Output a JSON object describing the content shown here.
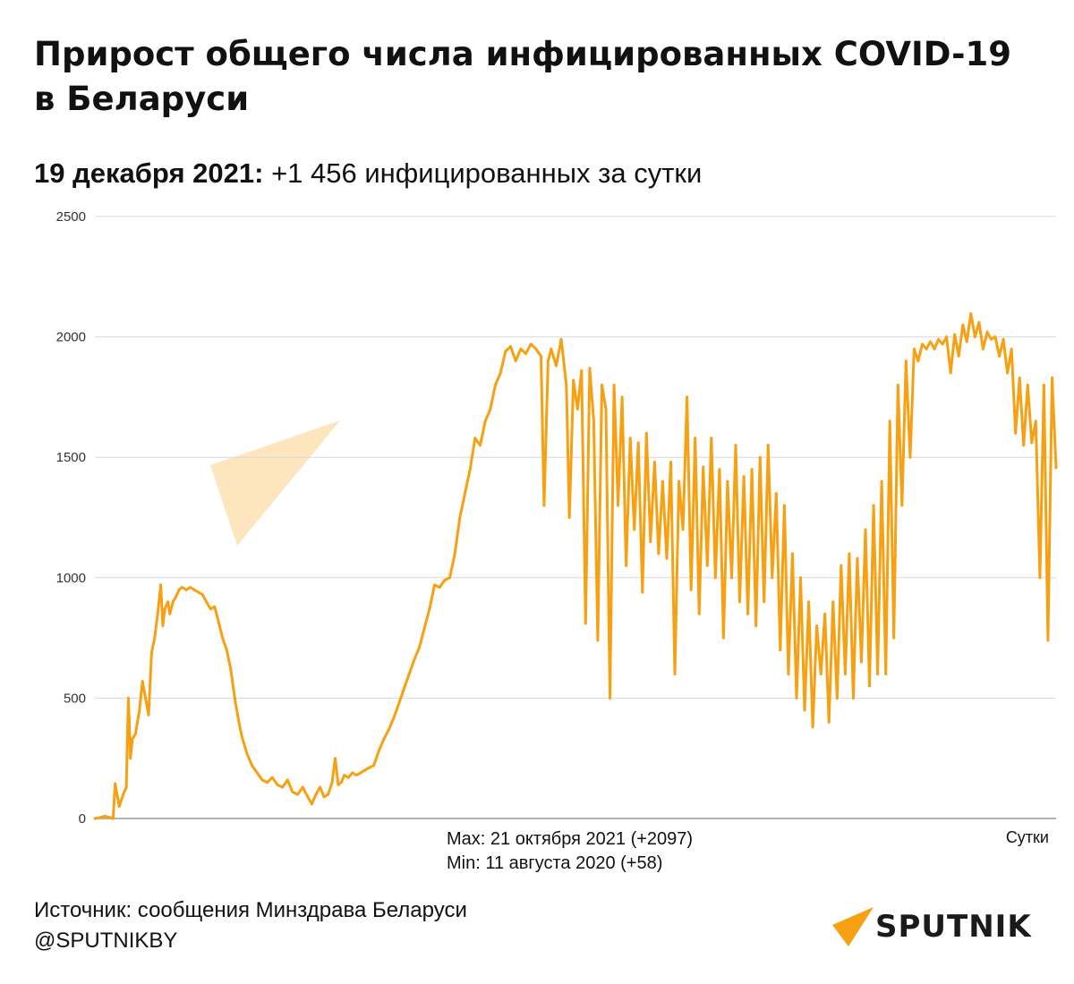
{
  "title": "Прирост общего числа инфицированных COVID-19 в Беларуси",
  "subtitle": {
    "date": "19 декабря 2021:",
    "value_text": "+1 456 инфицированных за сутки"
  },
  "footer": {
    "source": "Источник: сообщения Минздрава Беларуси",
    "handle": "@SPUTNIKBY"
  },
  "logo": {
    "text": "SPUTNIK",
    "icon": "sputnik-logo-icon"
  },
  "colors": {
    "line": "#F7A012",
    "grid": "#d9d9d9",
    "logo_accent": "#F7A012"
  },
  "chart_data": {
    "type": "line",
    "ylim": [
      0,
      2500
    ],
    "yticks": [
      0,
      500,
      1000,
      1500,
      2000,
      2500
    ],
    "xlabel": "Сутки",
    "grid": true,
    "annotations": [
      "Max: 21 октября 2021 (+2097)",
      "Min: 11 августа 2020 (+58)"
    ],
    "series": [
      {
        "points": [
          [
            0,
            0
          ],
          [
            6,
            5
          ],
          [
            10,
            10
          ],
          [
            14,
            5
          ],
          [
            18,
            0
          ],
          [
            20,
            145
          ],
          [
            24,
            50
          ],
          [
            28,
            100
          ],
          [
            31,
            130
          ],
          [
            33,
            500
          ],
          [
            34,
            400
          ],
          [
            35,
            250
          ],
          [
            37,
            330
          ],
          [
            40,
            350
          ],
          [
            44,
            450
          ],
          [
            47,
            570
          ],
          [
            50,
            500
          ],
          [
            53,
            430
          ],
          [
            56,
            690
          ],
          [
            59,
            750
          ],
          [
            62,
            850
          ],
          [
            65,
            970
          ],
          [
            67,
            800
          ],
          [
            69,
            870
          ],
          [
            72,
            900
          ],
          [
            74,
            850
          ],
          [
            77,
            900
          ],
          [
            80,
            920
          ],
          [
            83,
            950
          ],
          [
            86,
            960
          ],
          [
            90,
            950
          ],
          [
            94,
            960
          ],
          [
            98,
            950
          ],
          [
            102,
            940
          ],
          [
            106,
            930
          ],
          [
            110,
            900
          ],
          [
            114,
            870
          ],
          [
            118,
            880
          ],
          [
            120,
            850
          ],
          [
            123,
            800
          ],
          [
            126,
            750
          ],
          [
            130,
            700
          ],
          [
            134,
            620
          ],
          [
            138,
            500
          ],
          [
            142,
            400
          ],
          [
            145,
            340
          ],
          [
            150,
            270
          ],
          [
            155,
            220
          ],
          [
            160,
            190
          ],
          [
            165,
            160
          ],
          [
            170,
            150
          ],
          [
            175,
            170
          ],
          [
            180,
            140
          ],
          [
            185,
            130
          ],
          [
            190,
            160
          ],
          [
            195,
            110
          ],
          [
            200,
            100
          ],
          [
            205,
            130
          ],
          [
            210,
            90
          ],
          [
            214,
            60
          ],
          [
            218,
            100
          ],
          [
            222,
            130
          ],
          [
            226,
            90
          ],
          [
            230,
            100
          ],
          [
            234,
            150
          ],
          [
            237,
            250
          ],
          [
            240,
            140
          ],
          [
            243,
            150
          ],
          [
            246,
            180
          ],
          [
            250,
            170
          ],
          [
            254,
            190
          ],
          [
            258,
            180
          ],
          [
            262,
            190
          ],
          [
            266,
            200
          ],
          [
            270,
            210
          ],
          [
            275,
            220
          ],
          [
            280,
            280
          ],
          [
            285,
            330
          ],
          [
            290,
            370
          ],
          [
            295,
            420
          ],
          [
            300,
            480
          ],
          [
            305,
            540
          ],
          [
            310,
            600
          ],
          [
            315,
            660
          ],
          [
            320,
            710
          ],
          [
            325,
            790
          ],
          [
            330,
            870
          ],
          [
            335,
            970
          ],
          [
            340,
            960
          ],
          [
            345,
            990
          ],
          [
            350,
            1000
          ],
          [
            355,
            1100
          ],
          [
            360,
            1250
          ],
          [
            365,
            1350
          ],
          [
            370,
            1450
          ],
          [
            375,
            1580
          ],
          [
            380,
            1550
          ],
          [
            385,
            1650
          ],
          [
            390,
            1700
          ],
          [
            395,
            1800
          ],
          [
            400,
            1850
          ],
          [
            405,
            1940
          ],
          [
            410,
            1960
          ],
          [
            415,
            1900
          ],
          [
            420,
            1950
          ],
          [
            425,
            1930
          ],
          [
            430,
            1970
          ],
          [
            435,
            1950
          ],
          [
            440,
            1920
          ],
          [
            443,
            1300
          ],
          [
            447,
            1900
          ],
          [
            450,
            1950
          ],
          [
            455,
            1880
          ],
          [
            460,
            1990
          ],
          [
            465,
            1800
          ],
          [
            468,
            1250
          ],
          [
            472,
            1820
          ],
          [
            476,
            1700
          ],
          [
            480,
            1860
          ],
          [
            484,
            810
          ],
          [
            488,
            1870
          ],
          [
            492,
            1650
          ],
          [
            496,
            740
          ],
          [
            500,
            1800
          ],
          [
            504,
            1700
          ],
          [
            508,
            500
          ],
          [
            512,
            1800
          ],
          [
            516,
            1300
          ],
          [
            520,
            1750
          ],
          [
            524,
            1050
          ],
          [
            528,
            1580
          ],
          [
            532,
            1200
          ],
          [
            536,
            1560
          ],
          [
            540,
            940
          ],
          [
            544,
            1600
          ],
          [
            548,
            1150
          ],
          [
            552,
            1480
          ],
          [
            556,
            1100
          ],
          [
            560,
            1400
          ],
          [
            564,
            1080
          ],
          [
            568,
            1480
          ],
          [
            572,
            600
          ],
          [
            576,
            1400
          ],
          [
            580,
            1200
          ],
          [
            584,
            1750
          ],
          [
            588,
            950
          ],
          [
            592,
            1580
          ],
          [
            596,
            850
          ],
          [
            600,
            1460
          ],
          [
            604,
            1050
          ],
          [
            608,
            1580
          ],
          [
            612,
            1000
          ],
          [
            616,
            1450
          ],
          [
            620,
            750
          ],
          [
            624,
            1400
          ],
          [
            628,
            1000
          ],
          [
            632,
            1550
          ],
          [
            636,
            900
          ],
          [
            640,
            1420
          ],
          [
            644,
            850
          ],
          [
            648,
            1450
          ],
          [
            652,
            800
          ],
          [
            656,
            1500
          ],
          [
            660,
            900
          ],
          [
            664,
            1550
          ],
          [
            668,
            1000
          ],
          [
            672,
            1350
          ],
          [
            676,
            700
          ],
          [
            680,
            1300
          ],
          [
            684,
            600
          ],
          [
            688,
            1100
          ],
          [
            692,
            500
          ],
          [
            696,
            1000
          ],
          [
            700,
            450
          ],
          [
            704,
            900
          ],
          [
            708,
            380
          ],
          [
            712,
            800
          ],
          [
            716,
            600
          ],
          [
            720,
            850
          ],
          [
            724,
            400
          ],
          [
            728,
            900
          ],
          [
            732,
            500
          ],
          [
            736,
            1050
          ],
          [
            740,
            600
          ],
          [
            744,
            1100
          ],
          [
            748,
            500
          ],
          [
            752,
            1080
          ],
          [
            756,
            650
          ],
          [
            760,
            1200
          ],
          [
            764,
            550
          ],
          [
            768,
            1300
          ],
          [
            772,
            600
          ],
          [
            776,
            1400
          ],
          [
            780,
            600
          ],
          [
            784,
            1650
          ],
          [
            788,
            750
          ],
          [
            792,
            1800
          ],
          [
            796,
            1300
          ],
          [
            800,
            1900
          ],
          [
            804,
            1500
          ],
          [
            808,
            1950
          ],
          [
            812,
            1900
          ],
          [
            816,
            1970
          ],
          [
            820,
            1950
          ],
          [
            824,
            1980
          ],
          [
            828,
            1950
          ],
          [
            832,
            1990
          ],
          [
            836,
            1970
          ],
          [
            840,
            2000
          ],
          [
            844,
            1850
          ],
          [
            848,
            2010
          ],
          [
            852,
            1920
          ],
          [
            856,
            2050
          ],
          [
            860,
            1980
          ],
          [
            864,
            2097
          ],
          [
            868,
            2000
          ],
          [
            872,
            2060
          ],
          [
            876,
            1950
          ],
          [
            880,
            2020
          ],
          [
            884,
            1990
          ],
          [
            888,
            2000
          ],
          [
            892,
            1920
          ],
          [
            896,
            1990
          ],
          [
            900,
            1850
          ],
          [
            904,
            1950
          ],
          [
            908,
            1600
          ],
          [
            912,
            1830
          ],
          [
            916,
            1550
          ],
          [
            920,
            1800
          ],
          [
            924,
            1560
          ],
          [
            928,
            1650
          ],
          [
            932,
            1000
          ],
          [
            936,
            1800
          ],
          [
            940,
            740
          ],
          [
            944,
            1830
          ],
          [
            948,
            1456
          ]
        ]
      }
    ]
  }
}
